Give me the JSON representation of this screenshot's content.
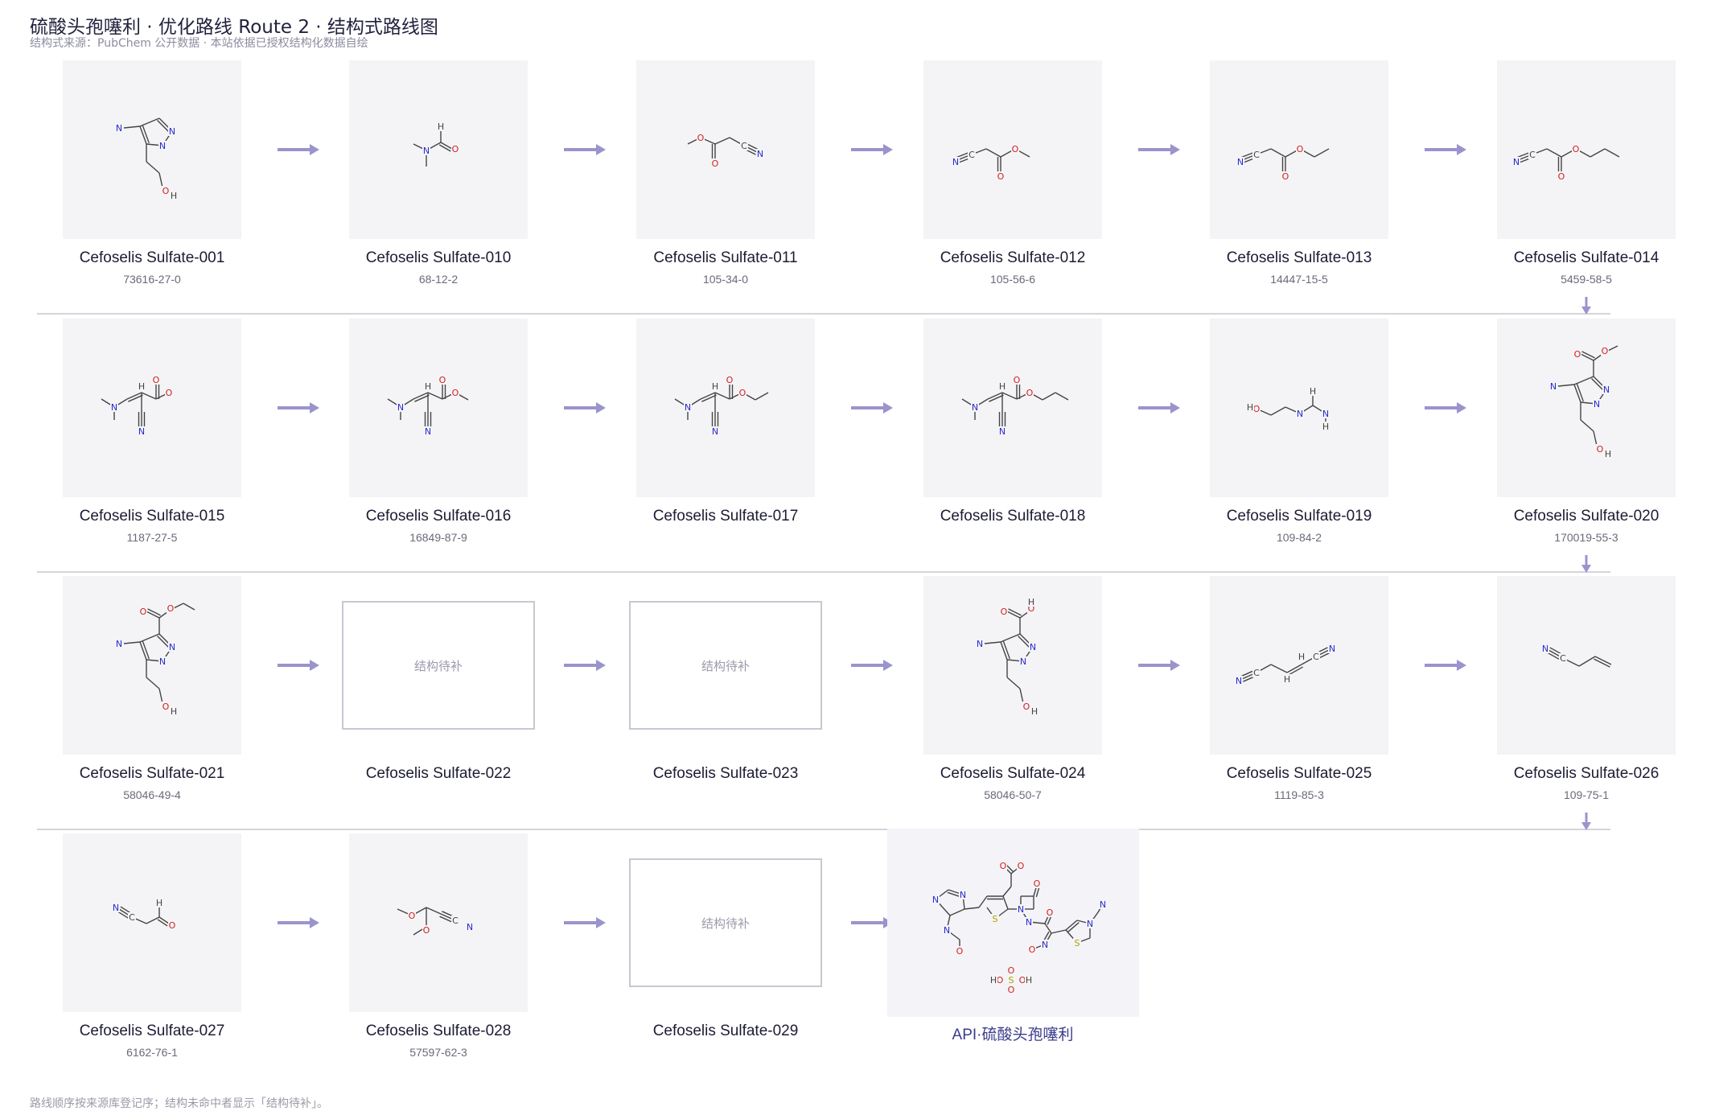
{
  "header": {
    "title": "硫酸头孢噻利 · 优化路线 Route 2 · 结构式路线图",
    "subtitle": "结构式来源：PubChem 公开数据 · 本站依据已授权结构化数据自绘"
  },
  "footer": {
    "note": "路线顺序按来源库登记序；结构未命中者显示「结构待补」。"
  },
  "placeholder_label": "结构待补",
  "colors": {
    "arrow": "#9a94cc",
    "tile_bg": "#f4f4f6",
    "api_tile_bg": "#f3f3f8",
    "bond": "#444444",
    "nitrogen": "#2a2ad0",
    "oxygen": "#d02020",
    "sulfur": "#b0a000"
  },
  "rows": [
    [
      {
        "name": "Cefoselis Sulfate-001",
        "cas": "73616-27-0",
        "structure": true
      },
      {
        "name": "Cefoselis Sulfate-010",
        "cas": "68-12-2",
        "structure": true
      },
      {
        "name": "Cefoselis Sulfate-011",
        "cas": "105-34-0",
        "structure": true
      },
      {
        "name": "Cefoselis Sulfate-012",
        "cas": "105-56-6",
        "structure": true
      },
      {
        "name": "Cefoselis Sulfate-013",
        "cas": "14447-15-5",
        "structure": true
      },
      {
        "name": "Cefoselis Sulfate-014",
        "cas": "5459-58-5",
        "structure": true
      }
    ],
    [
      {
        "name": "Cefoselis Sulfate-015",
        "cas": "1187-27-5",
        "structure": true
      },
      {
        "name": "Cefoselis Sulfate-016",
        "cas": "16849-87-9",
        "structure": true
      },
      {
        "name": "Cefoselis Sulfate-017",
        "cas": "",
        "structure": true
      },
      {
        "name": "Cefoselis Sulfate-018",
        "cas": "",
        "structure": true
      },
      {
        "name": "Cefoselis Sulfate-019",
        "cas": "109-84-2",
        "structure": true
      },
      {
        "name": "Cefoselis Sulfate-020",
        "cas": "170019-55-3",
        "structure": true
      }
    ],
    [
      {
        "name": "Cefoselis Sulfate-021",
        "cas": "58046-49-4",
        "structure": true
      },
      {
        "name": "Cefoselis Sulfate-022",
        "cas": "",
        "structure": false
      },
      {
        "name": "Cefoselis Sulfate-023",
        "cas": "",
        "structure": false
      },
      {
        "name": "Cefoselis Sulfate-024",
        "cas": "58046-50-7",
        "structure": true
      },
      {
        "name": "Cefoselis Sulfate-025",
        "cas": "1119-85-3",
        "structure": true
      },
      {
        "name": "Cefoselis Sulfate-026",
        "cas": "109-75-1",
        "structure": true
      }
    ],
    [
      {
        "name": "Cefoselis Sulfate-027",
        "cas": "6162-76-1",
        "structure": true
      },
      {
        "name": "Cefoselis Sulfate-028",
        "cas": "57597-62-3",
        "structure": true
      },
      {
        "name": "Cefoselis Sulfate-029",
        "cas": "",
        "structure": false
      },
      {
        "name": "API·硫酸头孢噻利",
        "cas": "",
        "structure": true,
        "api": true
      }
    ]
  ]
}
